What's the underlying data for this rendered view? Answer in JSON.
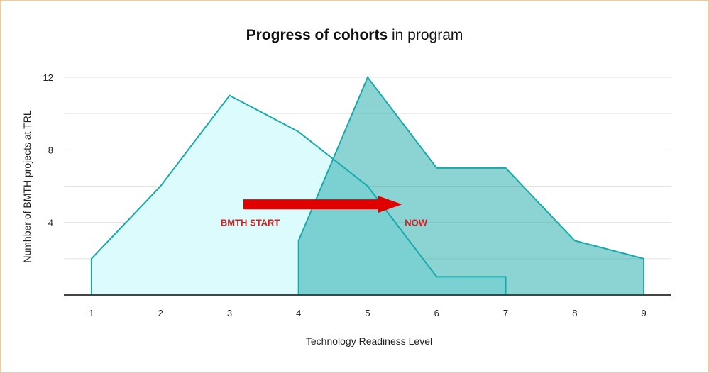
{
  "chart_data": {
    "type": "area",
    "title_bold": "Progress of cohorts",
    "title_rest": " in program",
    "xlabel": "Technology Readiness Level",
    "ylabel": "Numhber of BMTH projects at TRL",
    "xlim": [
      0.6,
      9.4
    ],
    "ylim": [
      0,
      12
    ],
    "x_ticks": [
      1,
      2,
      3,
      4,
      5,
      6,
      7,
      8,
      9
    ],
    "y_ticks": [
      4,
      8,
      12
    ],
    "grid": true,
    "series": [
      {
        "x": [
          1,
          1,
          2,
          3,
          4,
          5,
          6,
          7,
          7
        ],
        "y": [
          0,
          2,
          6,
          11,
          9,
          6,
          1,
          1,
          0
        ],
        "fill": "#dcfbfc",
        "stroke": "#1aa8a8"
      },
      {
        "x": [
          4,
          4,
          5,
          6,
          7,
          8,
          9,
          9
        ],
        "y": [
          0,
          3,
          12,
          7,
          7,
          3,
          2,
          0
        ],
        "fill": "#1aa8a8",
        "fill_opacity": 0.5,
        "stroke": "#1aa8a8"
      }
    ],
    "annotations": [
      {
        "text": "BMTH START",
        "x": 3.3,
        "y": 4,
        "color": "#d42020"
      },
      {
        "text": "NOW",
        "x": 5.7,
        "y": 4,
        "color": "#d42020"
      }
    ],
    "arrow": {
      "from": [
        3.2,
        5
      ],
      "to": [
        5.5,
        5
      ],
      "color": "#e00000"
    }
  }
}
